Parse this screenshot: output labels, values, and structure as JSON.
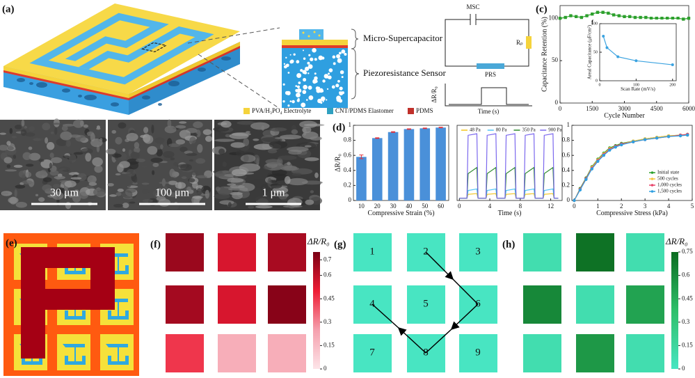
{
  "panel_labels": [
    "(a)",
    "(b)",
    "(c)",
    "(d)",
    "(e)",
    "(f)",
    "(g)",
    "(h)"
  ],
  "schematic": {
    "layers": [
      "Micro-Supercapacitor",
      "Piezoresistance Sensor"
    ],
    "legend": [
      "PVA/H₃PO₄ Electrolyte",
      "CNT/PDMS Elastomer",
      "PDMS"
    ],
    "circuit": {
      "msc": "MSC",
      "rp": "Rₚ",
      "prs": "PRS",
      "ylabel": "ΔR/R₀",
      "xlabel": "Time (s)"
    }
  },
  "sem": {
    "scale_bars": [
      "30 μm",
      "100 μm",
      "1 μm"
    ]
  },
  "grid_g": {
    "numbers": [
      "1",
      "2",
      "3",
      "4",
      "5",
      "6",
      "7",
      "8",
      "9"
    ]
  },
  "chart_data": [
    {
      "type": "line",
      "ylabel": "Capacitance Retention (%)",
      "xlabel": "Cycle Number",
      "marker": "square",
      "color": "#2ca02c",
      "x": [
        0,
        250,
        500,
        750,
        1000,
        1250,
        1500,
        1750,
        2000,
        2250,
        2500,
        2750,
        3000,
        3250,
        3500,
        3750,
        4000,
        4250,
        4500,
        4750,
        5000,
        5250,
        5500,
        5750,
        6000
      ],
      "values": [
        100,
        101,
        103,
        102,
        101,
        103,
        105,
        107,
        107,
        106,
        104,
        103,
        102,
        102,
        101,
        101,
        101,
        100,
        100,
        100,
        100,
        100,
        100,
        99,
        100
      ],
      "xlim": [
        0,
        6000
      ],
      "xticks": [
        0,
        1500,
        3000,
        4500,
        6000
      ],
      "ylim": [
        0,
        115
      ],
      "yticks": [
        0,
        50,
        100
      ]
    },
    {
      "type": "line",
      "label": "f",
      "ylabel": "Areal Capacitance (μF/cm²)",
      "xlabel": "Scan Rate (mV/s)",
      "marker": "circle",
      "color": "#3ba3e0",
      "x": [
        10,
        20,
        50,
        100,
        200
      ],
      "values": [
        78,
        58,
        42,
        35,
        28
      ],
      "xlim": [
        0,
        210
      ],
      "xticks": [
        0,
        100,
        200
      ],
      "ylim": [
        0,
        100
      ],
      "yticks": [
        0,
        50,
        100
      ]
    },
    {
      "type": "bar",
      "ylabel": "ΔR/R₀",
      "xlabel": "Compressive Strain (%)",
      "color": "#4a90d9",
      "error_color": "#e0303a",
      "categories": [
        "10",
        "20",
        "30",
        "40",
        "50",
        "60"
      ],
      "values": [
        0.58,
        0.83,
        0.91,
        0.95,
        0.96,
        0.97
      ],
      "errors": [
        0.025,
        0.005,
        0.005,
        0.004,
        0.004,
        0.004
      ],
      "ylim": [
        0,
        1
      ],
      "yticks": [
        0,
        0.2,
        0.4,
        0.6,
        0.8,
        1
      ]
    },
    {
      "type": "line",
      "xlabel": "Time (s)",
      "legend": "top",
      "x": [
        0,
        1,
        1.15,
        2.3,
        2.45,
        3.5,
        3.65,
        4.8,
        4.95,
        6,
        6.15,
        7.3,
        7.45,
        8.5,
        8.65,
        9.8,
        9.95,
        11,
        11.15,
        12.3,
        12.45,
        13
      ],
      "series": [
        {
          "name": "48 Pa",
          "color": "#f2c41c",
          "values": [
            0,
            0,
            0.05,
            0.06,
            0,
            0,
            0.05,
            0.06,
            0,
            0,
            0.05,
            0.06,
            0,
            0,
            0.05,
            0.06,
            0,
            0,
            0.05,
            0.06,
            0,
            0
          ]
        },
        {
          "name": "80 Pa",
          "color": "#4fc3f7",
          "values": [
            0,
            0,
            0.1,
            0.12,
            0,
            0,
            0.1,
            0.12,
            0,
            0,
            0.1,
            0.12,
            0,
            0,
            0.1,
            0.12,
            0,
            0,
            0.1,
            0.12,
            0,
            0
          ]
        },
        {
          "name": "350 Pa",
          "color": "#2e8b2e",
          "values": [
            0,
            0,
            0.32,
            0.4,
            0,
            0,
            0.32,
            0.4,
            0,
            0,
            0.32,
            0.4,
            0,
            0,
            0.32,
            0.4,
            0,
            0,
            0.32,
            0.4,
            0,
            0
          ]
        },
        {
          "name": "900 Pa",
          "color": "#7b68ee",
          "values": [
            0,
            0,
            0.82,
            0.84,
            0,
            0,
            0.82,
            0.84,
            0,
            0,
            0.82,
            0.84,
            0,
            0,
            0.82,
            0.84,
            0,
            0,
            0.82,
            0.84,
            0,
            0
          ]
        }
      ],
      "xlim": [
        -0.3,
        13.5
      ],
      "xticks": [
        0,
        4,
        8,
        12
      ],
      "ylim": [
        -0.03,
        0.95
      ]
    },
    {
      "type": "line",
      "xlabel": "Compressive Stress (kPa)",
      "legend": "lower right",
      "marker": "circle",
      "x": [
        0,
        0.25,
        0.5,
        0.75,
        1,
        1.25,
        1.5,
        1.75,
        2,
        2.5,
        3,
        3.5,
        4,
        4.5,
        4.8
      ],
      "series": [
        {
          "name": "Initial state",
          "color": "#2ca02c",
          "values": [
            0,
            0.16,
            0.3,
            0.45,
            0.55,
            0.63,
            0.7,
            0.73,
            0.76,
            0.79,
            0.82,
            0.84,
            0.86,
            0.87,
            0.88
          ]
        },
        {
          "name": "500 cycles",
          "color": "#f5c542",
          "values": [
            0,
            0.15,
            0.29,
            0.44,
            0.54,
            0.62,
            0.69,
            0.72,
            0.75,
            0.79,
            0.82,
            0.84,
            0.86,
            0.87,
            0.87
          ]
        },
        {
          "name": "1,000 cycles",
          "color": "#e8456a",
          "values": [
            0,
            0.15,
            0.29,
            0.43,
            0.53,
            0.61,
            0.68,
            0.72,
            0.75,
            0.78,
            0.81,
            0.83,
            0.85,
            0.87,
            0.88
          ]
        },
        {
          "name": "1,500 cycles",
          "color": "#2f9fe0",
          "values": [
            0,
            0.14,
            0.28,
            0.42,
            0.52,
            0.6,
            0.67,
            0.71,
            0.74,
            0.78,
            0.81,
            0.83,
            0.85,
            0.86,
            0.87
          ]
        }
      ],
      "xlim": [
        -0.1,
        5
      ],
      "xticks": [
        0,
        1,
        2,
        3,
        4,
        5
      ],
      "ylim": [
        0,
        1
      ],
      "yticks": [
        0,
        0.2,
        0.4,
        0.6,
        0.8,
        1
      ]
    },
    {
      "type": "heatmap",
      "colorbar_label": "ΔR/R₀",
      "values": [
        [
          0.68,
          0.55,
          0.65
        ],
        [
          0.66,
          0.55,
          0.72
        ],
        [
          0.45,
          0.2,
          0.2
        ]
      ],
      "colormap": [
        "#fde4e8",
        "#f5a0ad",
        "#ee1c34",
        "#7a0014"
      ],
      "clim": [
        0,
        0.75
      ],
      "cticks": [
        0,
        0.15,
        0.3,
        0.45,
        0.6,
        0.7
      ]
    },
    {
      "type": "heatmap",
      "colorbar_label": "ΔR/R₀",
      "values": [
        [
          0.08,
          0.72,
          0.08
        ],
        [
          0.62,
          0.08,
          0.5
        ],
        [
          0.08,
          0.55,
          0.08
        ]
      ],
      "colormap": [
        "#48e5c2",
        "#2ebf6a",
        "#0b6b1f"
      ],
      "clim": [
        0,
        0.75
      ],
      "cticks": [
        0,
        0.15,
        0.3,
        0.45,
        0.6,
        0.75
      ]
    }
  ]
}
